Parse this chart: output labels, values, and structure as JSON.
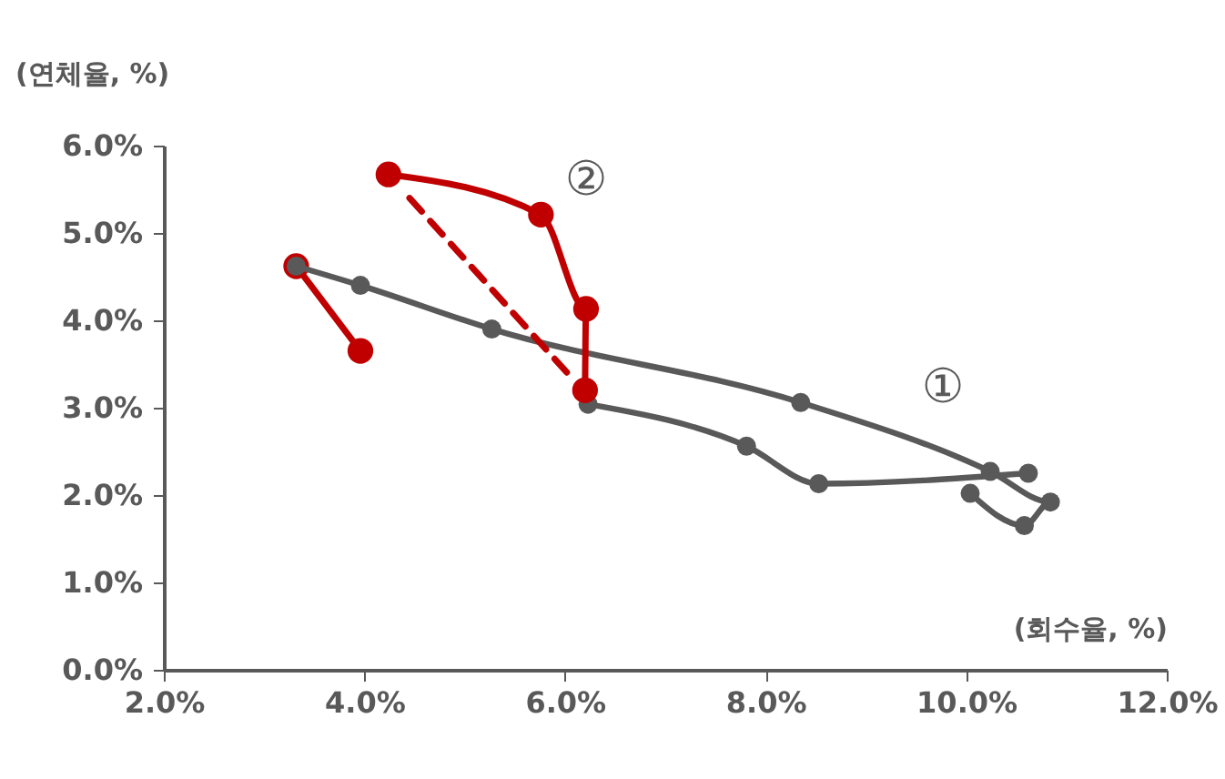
{
  "chart_data": {
    "type": "line",
    "xlabel": "(회수율,  %)",
    "ylabel": "(연체율, %)",
    "xlim": [
      2,
      12
    ],
    "ylim": [
      0,
      6
    ],
    "xticks": [
      {
        "value": 2,
        "label": "2.0%"
      },
      {
        "value": 4,
        "label": "4.0%"
      },
      {
        "value": 6,
        "label": "6.0%"
      },
      {
        "value": 8,
        "label": "8.0%"
      },
      {
        "value": 10,
        "label": "10.0%"
      },
      {
        "value": 12,
        "label": "12.0%"
      }
    ],
    "yticks": [
      {
        "value": 0,
        "label": "0.0%"
      },
      {
        "value": 1,
        "label": "1.0%"
      },
      {
        "value": 2,
        "label": "2.0%"
      },
      {
        "value": 3,
        "label": "3.0%"
      },
      {
        "value": 4,
        "label": "4.0%"
      },
      {
        "value": 5,
        "label": "5.0%"
      },
      {
        "value": 6,
        "label": "6.0%"
      }
    ],
    "grid": false,
    "marker": "circle",
    "line_style": "solid",
    "series": [
      {
        "color": "#c00000",
        "x": [
          3.32,
          3.96
        ],
        "values": [
          4.62,
          3.65
        ]
      },
      {
        "color": "#595959",
        "x": [
          3.32,
          3.96,
          5.27,
          8.35,
          10.24,
          10.84,
          10.58,
          10.04
        ],
        "values": [
          4.62,
          4.4,
          3.9,
          3.06,
          2.27,
          1.92,
          1.65,
          2.02
        ]
      },
      {
        "color": "#595959",
        "x": [
          10.62,
          8.53,
          7.81,
          6.23
        ],
        "values": [
          2.25,
          2.13,
          2.56,
          3.04
        ]
      },
      {
        "color": "#c00000",
        "x": [
          4.24,
          5.76,
          6.21,
          6.2
        ],
        "values": [
          5.67,
          5.21,
          4.13,
          3.2
        ]
      },
      {
        "color": "#c00000",
        "line_style": "dashed",
        "marker": "none",
        "x": [
          4.45,
          6.1
        ],
        "values": [
          5.4,
          3.3
        ]
      }
    ],
    "annotations": [
      "②",
      "①"
    ]
  }
}
